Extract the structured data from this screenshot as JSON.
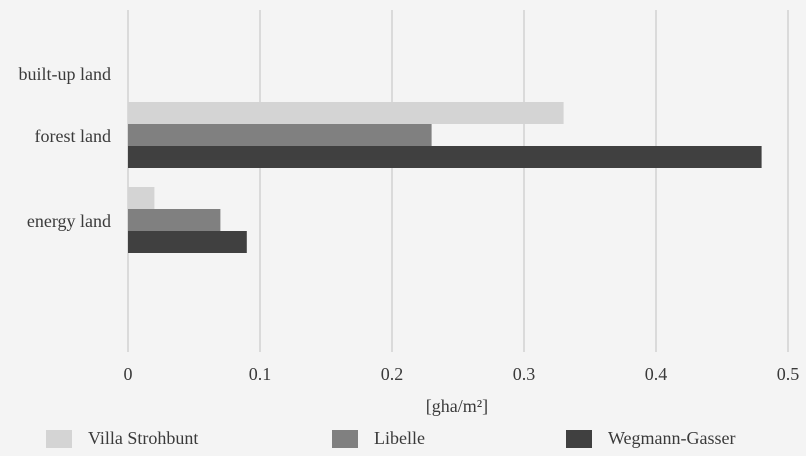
{
  "chart_data": {
    "type": "bar",
    "orientation": "horizontal",
    "categories": [
      "built-up land",
      "forest land",
      "energy land"
    ],
    "series": [
      {
        "name": "Villa Strohbunt",
        "color": "#d4d4d4",
        "values": [
          0,
          0.33,
          0.02
        ]
      },
      {
        "name": "Libelle",
        "color": "#808080",
        "values": [
          0,
          0.23,
          0.07
        ]
      },
      {
        "name": "Wegmann-Gasser",
        "color": "#404040",
        "values": [
          0,
          0.48,
          0.09
        ]
      }
    ],
    "xlabel": "[gha/m²]",
    "ylabel": "",
    "xlim": [
      0,
      0.5
    ],
    "xticks": [
      "0",
      "0.1",
      "0.2",
      "0.3",
      "0.4",
      "0.5"
    ],
    "grid": "vertical",
    "legend_position": "bottom"
  }
}
